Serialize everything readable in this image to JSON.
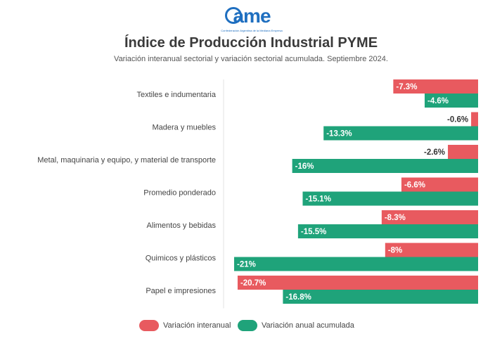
{
  "logo": {
    "word": "ame",
    "tagline": "Confederación Argentina de la Mediana Empresa"
  },
  "chart_data": {
    "type": "bar",
    "orientation": "horizontal",
    "title": "Índice de Producción Industrial PYME",
    "subtitle": "Variación interanual sectorial y variación sectorial acumulada. Septiembre 2024.",
    "categories": [
      "Textiles e indumentaria",
      "Madera y muebles",
      "Metal, maquinaria y equipo, y material de transporte",
      "Promedio ponderado",
      "Alimentos y bebidas",
      "Quimicos y plásticos",
      "Papel e impresiones"
    ],
    "series": [
      {
        "name": "Variación interanual",
        "color": "#e85a5f",
        "values": [
          -7.3,
          -0.6,
          -2.6,
          -6.6,
          -8.3,
          -8,
          -20.7
        ],
        "labels": [
          "-7.3%",
          "-0.6%",
          "-2.6%",
          "-6.6%",
          "-8.3%",
          "-8%",
          "-20.7%"
        ]
      },
      {
        "name": "Variación anual acumulada",
        "color": "#1fa37a",
        "values": [
          -4.6,
          -13.3,
          -16,
          -15.1,
          -15.5,
          -21,
          -16.8
        ],
        "labels": [
          "-4.6%",
          "-13.3%",
          "-16%",
          "-15.1%",
          "-15.5%",
          "-21%",
          "-16.8%"
        ]
      }
    ],
    "xlim": [
      -21,
      0
    ]
  },
  "legend": {
    "interanual": "Variación interanual",
    "acumulada": "Variación anual acumulada",
    "interanual_color": "#e85a5f",
    "acumulada_color": "#1fa37a"
  }
}
